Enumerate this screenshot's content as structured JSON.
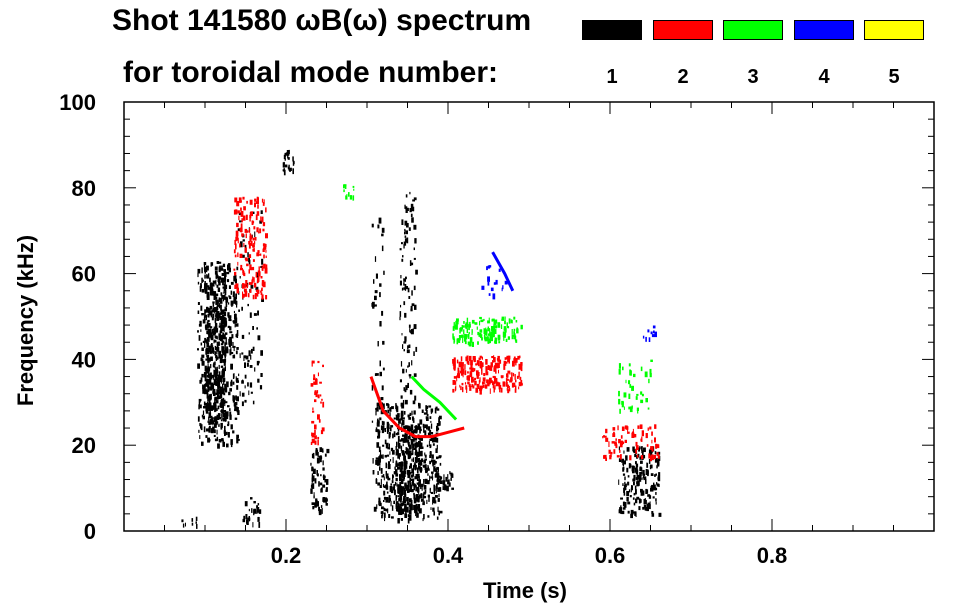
{
  "chart_data": {
    "type": "heatmap",
    "title_line1": "Shot 141580 ωB(ω) spectrum",
    "title_line2": "for toroidal mode number:",
    "xlabel": "Time (s)",
    "ylabel": "Frequency (kHz)",
    "xlim": [
      0.0,
      1.0
    ],
    "ylim": [
      0,
      100
    ],
    "x_ticks": [
      0.2,
      0.4,
      0.6,
      0.8
    ],
    "x_tick_labels": [
      "0.2",
      "0.4",
      "0.6",
      "0.8"
    ],
    "y_ticks": [
      0,
      20,
      40,
      60,
      80,
      100
    ],
    "y_tick_labels": [
      "0",
      "20",
      "40",
      "60",
      "80",
      "100"
    ],
    "legend": [
      {
        "label": "1",
        "color": "#000000"
      },
      {
        "label": "2",
        "color": "#ff0000"
      },
      {
        "label": "3",
        "color": "#00ff00"
      },
      {
        "label": "4",
        "color": "#0000ff"
      },
      {
        "label": "5",
        "color": "#ffff00"
      }
    ],
    "features": [
      {
        "mode": 1,
        "t": [
          0.09,
          0.14
        ],
        "f": [
          20,
          63
        ],
        "density": 0.5
      },
      {
        "mode": 1,
        "t": [
          0.1,
          0.125
        ],
        "f": [
          25,
          60
        ],
        "density": 0.85
      },
      {
        "mode": 1,
        "t": [
          0.14,
          0.17
        ],
        "f": [
          30,
          75
        ],
        "density": 0.15
      },
      {
        "mode": 1,
        "t": [
          0.195,
          0.21
        ],
        "f": [
          84,
          89
        ],
        "density": 0.8
      },
      {
        "mode": 1,
        "t": [
          0.23,
          0.25
        ],
        "f": [
          5,
          20
        ],
        "density": 0.6
      },
      {
        "mode": 1,
        "t": [
          0.305,
          0.32
        ],
        "f": [
          5,
          75
        ],
        "density": 0.1
      },
      {
        "mode": 1,
        "t": [
          0.31,
          0.39
        ],
        "f": [
          3,
          30
        ],
        "density": 0.55
      },
      {
        "mode": 1,
        "t": [
          0.335,
          0.365
        ],
        "f": [
          5,
          25
        ],
        "density": 0.85
      },
      {
        "mode": 1,
        "t": [
          0.34,
          0.36
        ],
        "f": [
          30,
          80
        ],
        "density": 0.25
      },
      {
        "mode": 1,
        "t": [
          0.385,
          0.405
        ],
        "f": [
          10,
          14
        ],
        "density": 0.9
      },
      {
        "mode": 1,
        "t": [
          0.61,
          0.66
        ],
        "f": [
          4,
          20
        ],
        "density": 0.6
      },
      {
        "mode": 1,
        "t": [
          0.07,
          0.09
        ],
        "f": [
          1,
          4
        ],
        "density": 0.3
      },
      {
        "mode": 1,
        "t": [
          0.145,
          0.17
        ],
        "f": [
          2,
          8
        ],
        "density": 0.4
      },
      {
        "mode": 2,
        "t": [
          0.135,
          0.175
        ],
        "f": [
          55,
          78
        ],
        "density": 0.45
      },
      {
        "mode": 2,
        "t": [
          0.23,
          0.245
        ],
        "f": [
          20,
          40
        ],
        "density": 0.35
      },
      {
        "mode": 2,
        "t": [
          0.405,
          0.49
        ],
        "f": [
          33,
          41
        ],
        "density": 0.8
      },
      {
        "mode": 2,
        "t": [
          0.59,
          0.66
        ],
        "f": [
          17,
          25
        ],
        "density": 0.35
      },
      {
        "mode": 3,
        "t": [
          0.405,
          0.49
        ],
        "f": [
          44,
          50
        ],
        "density": 0.75
      },
      {
        "mode": 3,
        "t": [
          0.27,
          0.285
        ],
        "f": [
          78,
          81
        ],
        "density": 0.7
      },
      {
        "mode": 3,
        "t": [
          0.61,
          0.65
        ],
        "f": [
          28,
          40
        ],
        "density": 0.2
      },
      {
        "mode": 4,
        "t": [
          0.44,
          0.47
        ],
        "f": [
          55,
          62
        ],
        "density": 0.2
      },
      {
        "mode": 4,
        "t": [
          0.64,
          0.655
        ],
        "f": [
          45,
          48
        ],
        "density": 0.5
      }
    ],
    "traces": [
      {
        "mode": 2,
        "points": [
          [
            0.305,
            36
          ],
          [
            0.32,
            28
          ],
          [
            0.34,
            24
          ],
          [
            0.36,
            22
          ],
          [
            0.38,
            22
          ],
          [
            0.4,
            23
          ],
          [
            0.42,
            24
          ]
        ]
      },
      {
        "mode": 3,
        "points": [
          [
            0.355,
            36
          ],
          [
            0.37,
            33
          ],
          [
            0.39,
            30
          ],
          [
            0.41,
            26
          ]
        ]
      },
      {
        "mode": 4,
        "points": [
          [
            0.455,
            65
          ],
          [
            0.47,
            60
          ],
          [
            0.48,
            56
          ]
        ]
      }
    ]
  }
}
